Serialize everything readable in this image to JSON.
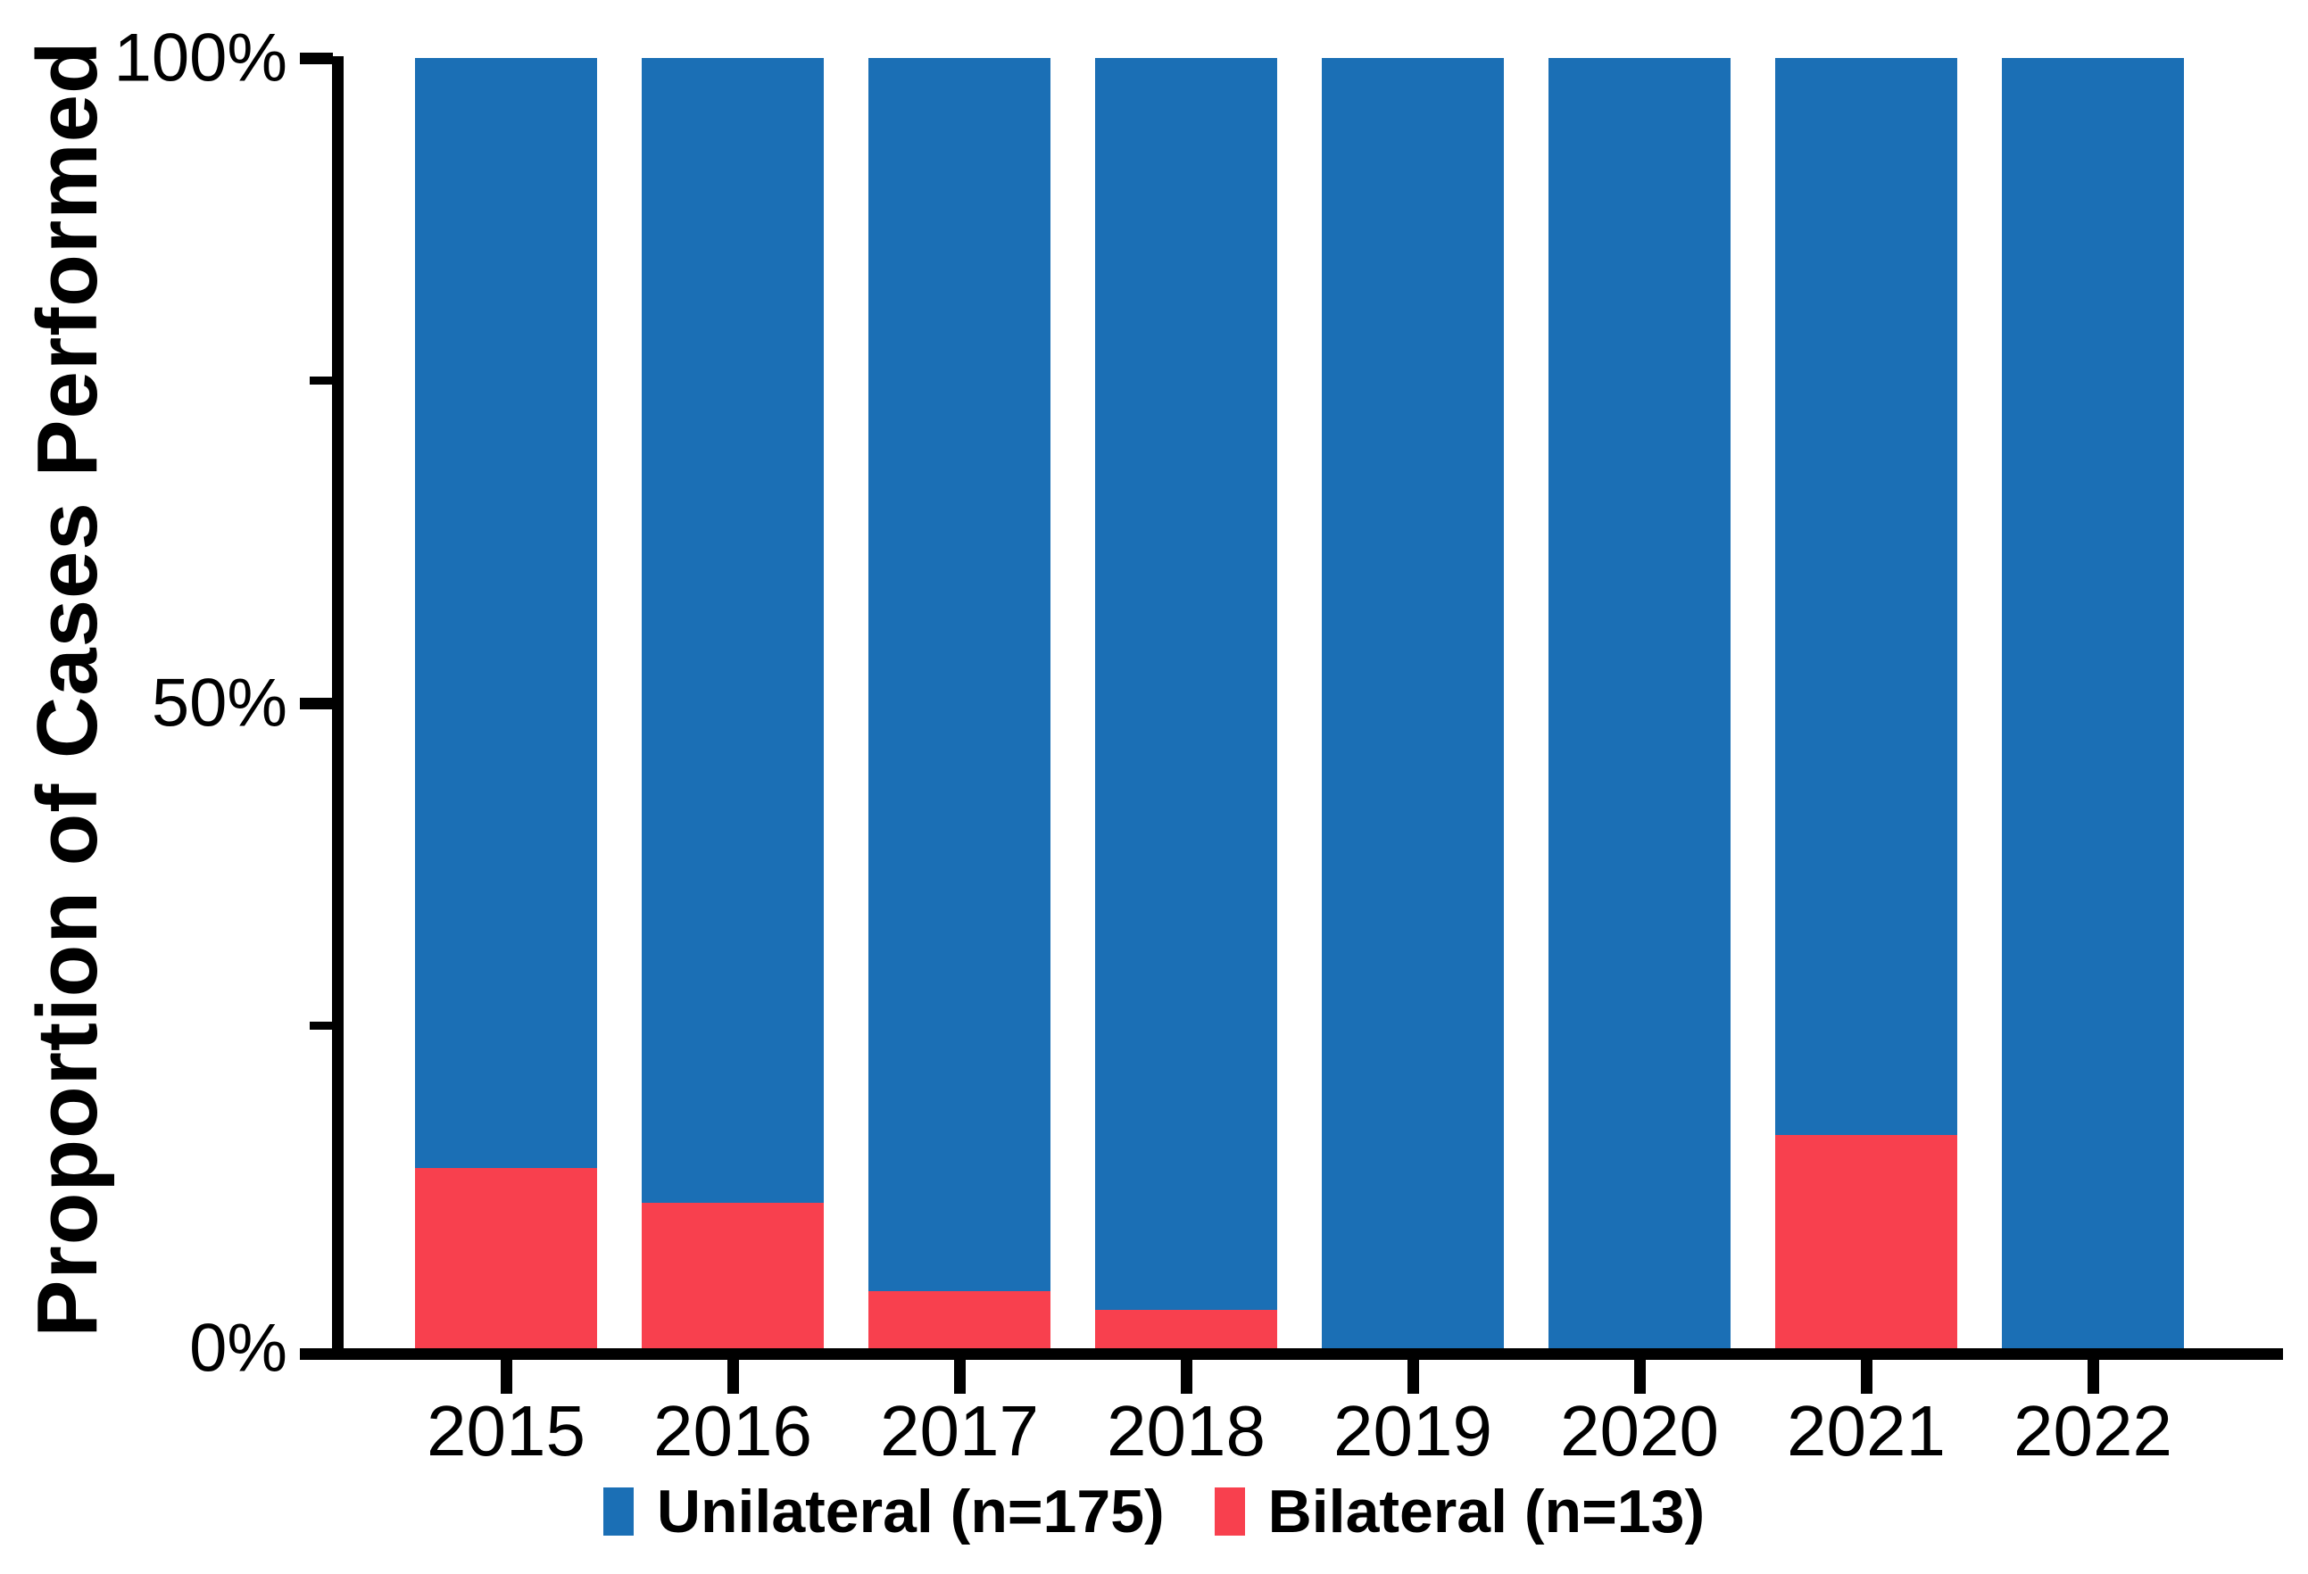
{
  "figure": {
    "background": "#FFFFFF",
    "y_axis": {
      "title": "Proportion of Cases Performed",
      "range": [
        0,
        100
      ],
      "ticks": [
        {
          "label": "100%",
          "value": 100,
          "major": true
        },
        {
          "label": "",
          "value": 75,
          "major": false
        },
        {
          "label": "50%",
          "value": 50,
          "major": true
        },
        {
          "label": "",
          "value": 25,
          "major": false
        },
        {
          "label": "0%",
          "value": 0,
          "major": true
        }
      ]
    },
    "x_axis": {
      "categories": [
        "2015",
        "2016",
        "2017",
        "2018",
        "2019",
        "2020",
        "2021",
        "2022"
      ]
    },
    "legend": {
      "items": [
        {
          "label": "Unilateral (n=175)",
          "color": "#1B6FB5"
        },
        {
          "label": "Bilateral (n=13)",
          "color": "#F8404E"
        }
      ]
    }
  },
  "chart_data": {
    "type": "bar",
    "stacked": true,
    "unit": "percent",
    "title": "",
    "xlabel": "",
    "ylabel": "Proportion of Cases Performed",
    "ylim": [
      0,
      100
    ],
    "grid": false,
    "legend_position": "bottom",
    "categories": [
      "2015",
      "2016",
      "2017",
      "2018",
      "2019",
      "2020",
      "2021",
      "2022"
    ],
    "series": [
      {
        "name": "Unilateral (n=175)",
        "color": "#1B6FB5",
        "values": [
          86.0,
          88.7,
          95.6,
          97.0,
          100,
          100,
          83.5,
          100
        ]
      },
      {
        "name": "Bilateral (n=13)",
        "color": "#F8404E",
        "values": [
          14.0,
          11.3,
          4.4,
          3.0,
          0,
          0,
          16.5,
          0
        ]
      }
    ]
  }
}
